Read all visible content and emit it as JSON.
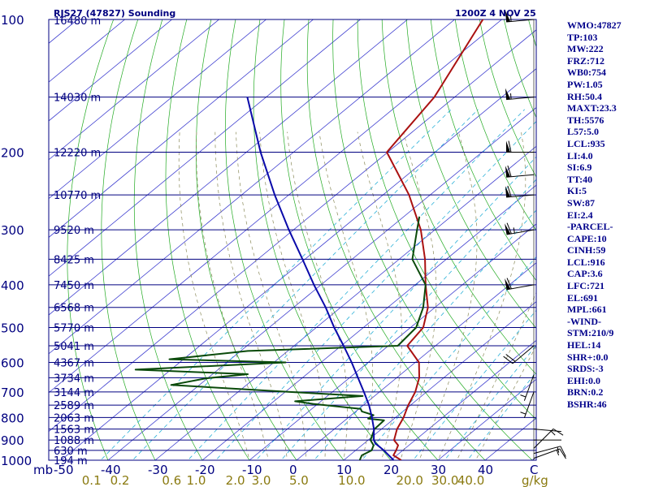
{
  "header": {
    "station": "RJS27 (47827) Sounding",
    "time": "1200Z  4 NOV 25"
  },
  "stats": [
    "WMO:47827",
    "TP:103",
    "MW:222",
    "FRZ:712",
    "WB0:754",
    "PW:1.05",
    "RH:50.4",
    "MAXT:23.3",
    "TH:5576",
    "L57:5.0",
    "LCL:935",
    "LI:4.0",
    "SI:6.9",
    "TT:40",
    "KI:5",
    "SW:87",
    "EI:2.4",
    "-PARCEL-",
    "CAPE:10",
    "CINH:59",
    "LCL:916",
    "CAP:3.6",
    "LFC:721",
    "EL:691",
    "MPL:661",
    "-WIND-",
    "STM:210/9",
    "HEL:14",
    "SHR+:0.0",
    "SRDS:-3",
    "EHI:0.0",
    "BRN:0.2",
    "BSHR:46"
  ],
  "colors": {
    "isobar": "#000080",
    "isotherm": "#4040d0",
    "dry_adiabat": "#22aa22",
    "moist_adiabat": "#8a8a5a",
    "mixing_ratio": "#2ab0d8",
    "temperature": "#aa1111",
    "dewpoint": "#0a4a0a",
    "parcel": "#0a0aaa",
    "axis_text": "#000080",
    "mixing_text": "#8a7a10"
  },
  "chart_data": {
    "type": "line",
    "title": "RJS27 (47827) Sounding",
    "xlabel": "Temperature (C)",
    "ylabel": "mb",
    "xlim": [
      -50,
      50
    ],
    "ylim": [
      1000,
      100
    ],
    "y_scale": "log pressure, skewed temperature",
    "x_tick_labels": [
      "mb",
      "-50",
      "-40",
      "-30",
      "-20",
      "-10",
      "0",
      "10",
      "20",
      "30",
      "40",
      "C"
    ],
    "x_ticks": [
      -50,
      -40,
      -30,
      -20,
      -10,
      0,
      10,
      20,
      30,
      40
    ],
    "pressure_levels": [
      {
        "p": 100,
        "label": "100",
        "height": "16480 m"
      },
      {
        "p": 150,
        "label": "",
        "height": "14030 m"
      },
      {
        "p": 200,
        "label": "200",
        "height": "12220 m"
      },
      {
        "p": 250,
        "label": "",
        "height": "10770 m"
      },
      {
        "p": 300,
        "label": "300",
        "height": "9520 m"
      },
      {
        "p": 350,
        "label": "",
        "height": "8425 m"
      },
      {
        "p": 400,
        "label": "400",
        "height": "7450 m"
      },
      {
        "p": 450,
        "label": "",
        "height": "6568 m"
      },
      {
        "p": 500,
        "label": "500",
        "height": "5770 m"
      },
      {
        "p": 550,
        "label": "",
        "height": "5041 m"
      },
      {
        "p": 600,
        "label": "600",
        "height": "4367 m"
      },
      {
        "p": 650,
        "label": "",
        "height": "3734 m"
      },
      {
        "p": 700,
        "label": "700",
        "height": "3144 m"
      },
      {
        "p": 750,
        "label": "",
        "height": "2589 m"
      },
      {
        "p": 800,
        "label": "800",
        "height": "2063 m"
      },
      {
        "p": 850,
        "label": "",
        "height": "1563 m"
      },
      {
        "p": 900,
        "label": "900",
        "height": "1088 m"
      },
      {
        "p": 950,
        "label": "",
        "height": "630 m"
      },
      {
        "p": 1000,
        "label": "1000",
        "height": "194 m"
      }
    ],
    "mixing_ratio_lines": [
      {
        "w": 0.1,
        "label": "0.1",
        "t_at_bottom": -43.5
      },
      {
        "w": 0.2,
        "label": "0.2",
        "t_at_bottom": -37.5
      },
      {
        "w": 0.6,
        "label": "0.6",
        "t_at_bottom": -26.5
      },
      {
        "w": 1.0,
        "label": "1.0",
        "t_at_bottom": -21.3
      },
      {
        "w": 2.0,
        "label": "2.0",
        "t_at_bottom": -13.0
      },
      {
        "w": 3.0,
        "label": "3.0",
        "t_at_bottom": -7.5
      },
      {
        "w": 5.0,
        "label": "5.0",
        "t_at_bottom": 0.5
      },
      {
        "w": 10.0,
        "label": "10.0",
        "t_at_bottom": 11.7
      },
      {
        "w": 20.0,
        "label": "20.0",
        "t_at_bottom": 24.0
      },
      {
        "w": 30.0,
        "label": "30.0",
        "t_at_bottom": 31.5
      },
      {
        "w": 40.0,
        "label": "40.0",
        "t_at_bottom": 37.0
      }
    ],
    "mixing_ratio_unit": "g/kg",
    "series": [
      {
        "name": "Temperature",
        "points": [
          [
            1000,
            22.2
          ],
          [
            975,
            19.3
          ],
          [
            950,
            18.6
          ],
          [
            925,
            17.7
          ],
          [
            900,
            15.5
          ],
          [
            850,
            13.3
          ],
          [
            800,
            11.7
          ],
          [
            750,
            9.5
          ],
          [
            700,
            7.6
          ],
          [
            650,
            4.8
          ],
          [
            600,
            0.8
          ],
          [
            550,
            -6.0
          ],
          [
            500,
            -7.3
          ],
          [
            450,
            -11.5
          ],
          [
            400,
            -17.8
          ],
          [
            350,
            -24.5
          ],
          [
            300,
            -33.0
          ],
          [
            250,
            -44.5
          ],
          [
            200,
            -60.2
          ],
          [
            150,
            -64.3
          ],
          [
            100,
            -74.0
          ],
          [
            90,
            -72.5
          ]
        ]
      },
      {
        "name": "Dewpoint",
        "points": [
          [
            1000,
            13.4
          ],
          [
            975,
            12.6
          ],
          [
            950,
            13.4
          ],
          [
            925,
            12.5
          ],
          [
            900,
            10.5
          ],
          [
            850,
            8.5
          ],
          [
            812,
            8.3
          ],
          [
            805,
            4.5
          ],
          [
            790,
            4.7
          ],
          [
            775,
            1.3
          ],
          [
            765,
            0.4
          ],
          [
            745,
            -11.0
          ],
          [
            735,
            -15.5
          ],
          [
            715,
            -2.5
          ],
          [
            700,
            -19.0
          ],
          [
            675,
            -46.0
          ],
          [
            652,
            -40.3
          ],
          [
            638,
            -32.5
          ],
          [
            623,
            -57.5
          ],
          [
            600,
            -27.5
          ],
          [
            590,
            -53.0
          ],
          [
            565,
            -38.5
          ],
          [
            550,
            -8.0
          ],
          [
            500,
            -8.8
          ],
          [
            450,
            -12.5
          ],
          [
            400,
            -17.8
          ],
          [
            350,
            -27.2
          ],
          [
            300,
            -33.8
          ],
          [
            280,
            -36.7
          ]
        ]
      },
      {
        "name": "Parcel",
        "points": [
          [
            1000,
            20.6
          ],
          [
            950,
            16.0
          ],
          [
            916,
            12.4
          ],
          [
            900,
            11.2
          ],
          [
            850,
            8.4
          ],
          [
            800,
            5.0
          ],
          [
            750,
            1.2
          ],
          [
            700,
            -3.3
          ],
          [
            650,
            -8.2
          ],
          [
            600,
            -13.5
          ],
          [
            550,
            -19.5
          ],
          [
            500,
            -26.2
          ],
          [
            450,
            -33.2
          ],
          [
            400,
            -41.5
          ],
          [
            350,
            -50.5
          ],
          [
            300,
            -61.0
          ],
          [
            250,
            -73.0
          ],
          [
            200,
            -87.0
          ],
          [
            150,
            -104.0
          ]
        ]
      }
    ],
    "wind_barbs": [
      {
        "p": 990,
        "direction": 70,
        "speed": 15
      },
      {
        "p": 965,
        "direction": 75,
        "speed": 15
      },
      {
        "p": 940,
        "direction": 45,
        "speed": 15
      },
      {
        "p": 900,
        "direction": 90,
        "speed": 0
      },
      {
        "p": 850,
        "direction": 95,
        "speed": 0
      },
      {
        "p": 700,
        "direction": 200,
        "speed": 5
      },
      {
        "p": 640,
        "direction": 200,
        "speed": 5
      },
      {
        "p": 550,
        "direction": 230,
        "speed": 20
      },
      {
        "p": 400,
        "direction": 260,
        "speed": 60
      },
      {
        "p": 300,
        "direction": 260,
        "speed": 65
      },
      {
        "p": 250,
        "direction": 265,
        "speed": 60
      },
      {
        "p": 225,
        "direction": 265,
        "speed": 60
      },
      {
        "p": 200,
        "direction": 270,
        "speed": 60
      },
      {
        "p": 150,
        "direction": 265,
        "speed": 55
      },
      {
        "p": 100,
        "direction": 265,
        "speed": 55
      }
    ]
  }
}
